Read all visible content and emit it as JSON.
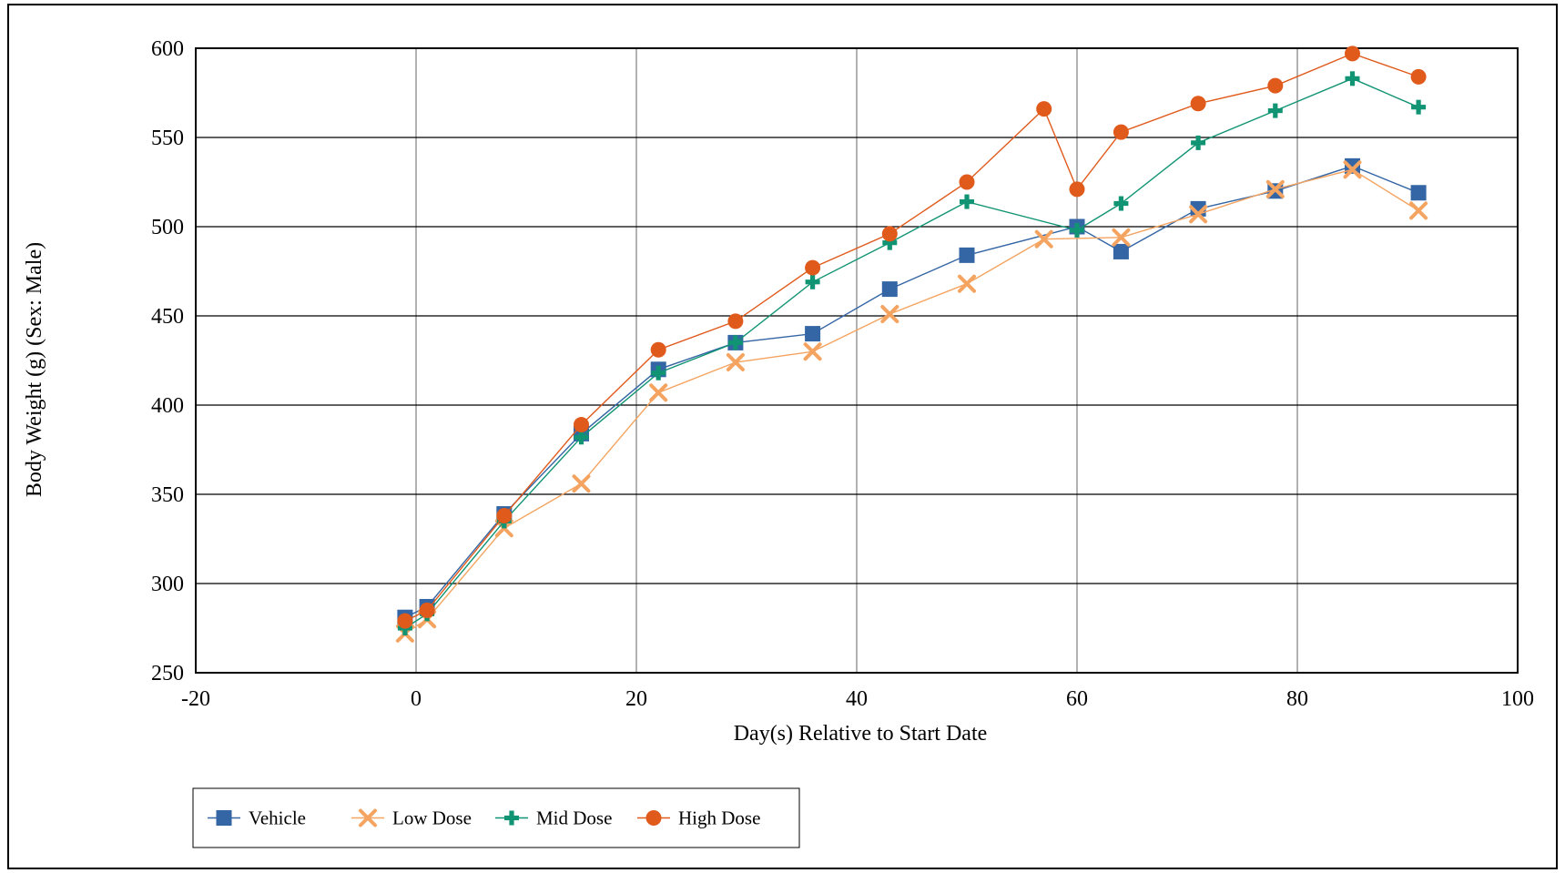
{
  "chart_data": {
    "type": "line",
    "title": "",
    "xlabel": "Day(s) Relative to Start Date",
    "ylabel": "Body Weight (g) (Sex: Male)",
    "xlim": [
      -20,
      100
    ],
    "ylim": [
      250,
      600
    ],
    "xticks": [
      -20,
      0,
      20,
      40,
      60,
      80,
      100
    ],
    "yticks": [
      250,
      300,
      350,
      400,
      450,
      500,
      550,
      600
    ],
    "grid": true,
    "legend_position": "bottom-left",
    "series": [
      {
        "name": "Vehicle",
        "color": "#3465a4",
        "marker": "square",
        "x": [
          -1,
          1,
          8,
          15,
          22,
          29,
          36,
          43,
          50,
          60,
          64,
          71,
          78,
          85,
          91
        ],
        "y": [
          281,
          287,
          339,
          384,
          420,
          435,
          440,
          465,
          484,
          500,
          486,
          510,
          520,
          534,
          519
        ]
      },
      {
        "name": "Low Dose",
        "color": "#f4a460",
        "marker": "x",
        "x": [
          -1,
          1,
          8,
          15,
          22,
          29,
          36,
          43,
          50,
          57,
          64,
          71,
          78,
          85,
          91
        ],
        "y": [
          272,
          280,
          331,
          356,
          407,
          424,
          430,
          451,
          468,
          493,
          494,
          507,
          521,
          532,
          509
        ]
      },
      {
        "name": "Mid Dose",
        "color": "#119473",
        "marker": "plus",
        "x": [
          -1,
          1,
          8,
          15,
          22,
          29,
          36,
          43,
          50,
          60,
          64,
          71,
          78,
          85,
          91
        ],
        "y": [
          275,
          283,
          335,
          382,
          418,
          435,
          469,
          491,
          514,
          498,
          513,
          547,
          565,
          583,
          567
        ]
      },
      {
        "name": "High Dose",
        "color": "#e05a1c",
        "marker": "circle",
        "x": [
          -1,
          1,
          8,
          15,
          22,
          29,
          36,
          43,
          50,
          57,
          60,
          64,
          71,
          78,
          85,
          91
        ],
        "y": [
          279,
          285,
          338,
          389,
          431,
          447,
          477,
          496,
          525,
          566,
          521,
          553,
          569,
          579,
          597,
          584
        ]
      }
    ]
  }
}
